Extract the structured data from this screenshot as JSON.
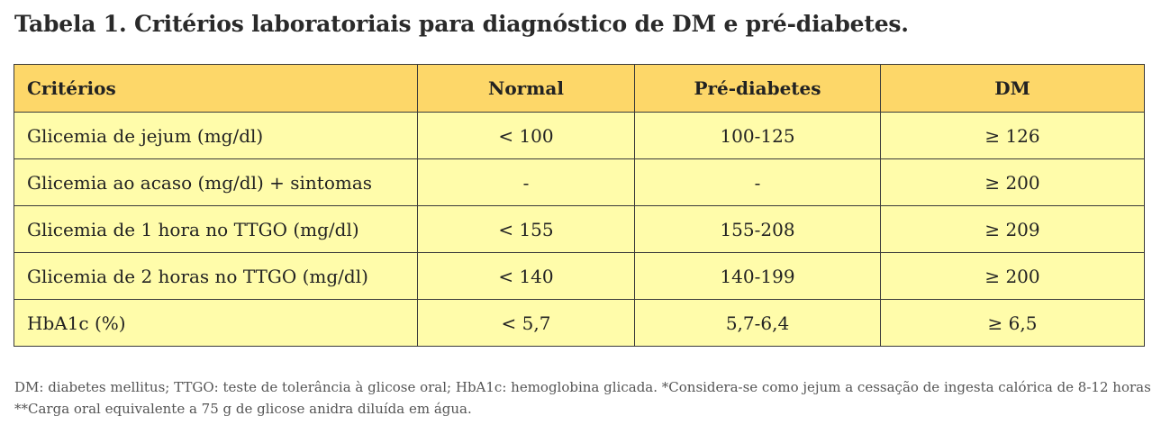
{
  "title": "Tabela 1. Critérios laboratoriais para diagnóstico de DM e pré-diabetes.",
  "table": {
    "headers": [
      "Critérios",
      "Normal",
      "Pré-diabetes",
      "DM"
    ],
    "rows": [
      [
        "Glicemia de jejum (mg/dl)",
        "< 100",
        "100-125",
        "≥ 126"
      ],
      [
        "Glicemia ao acaso (mg/dl) + sintomas",
        "-",
        "-",
        "≥ 200"
      ],
      [
        "Glicemia de 1 hora no TTGO (mg/dl)",
        "< 155",
        "155-208",
        "≥ 209"
      ],
      [
        "Glicemia de 2 horas no TTGO (mg/dl)",
        "< 140",
        "140-199",
        "≥ 200"
      ],
      [
        "HbA1c (%)",
        "< 5,7",
        "5,7-6,4",
        "≥ 6,5"
      ]
    ]
  },
  "footnote": {
    "line1": "DM: diabetes mellitus; TTGO: teste de tolerância à glicose oral; HbA1c: hemoglobina glicada. *Considera-se como jejum a cessação de ingesta calórica de 8-12 horas.",
    "line2": "**Carga oral equivalente a 75 g de glicose anidra diluída em água."
  },
  "colors": {
    "header_bg": "#fdd769",
    "body_bg": "#fffcaa",
    "border": "#3a3a3a"
  }
}
